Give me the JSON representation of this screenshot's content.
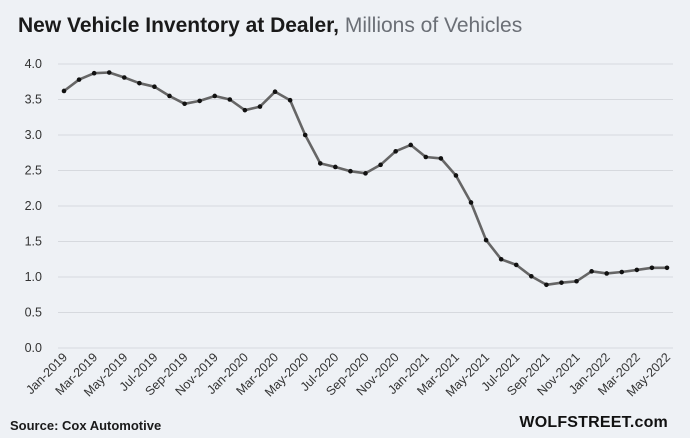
{
  "chart_data": {
    "type": "line",
    "title": "New Vehicle Inventory at Dealer,",
    "subtitle": "Millions of Vehicles",
    "xlabel": "",
    "ylabel": "",
    "ylim": [
      0,
      4.0
    ],
    "yticks": [
      "0.0",
      "0.5",
      "1.0",
      "1.5",
      "2.0",
      "2.5",
      "3.0",
      "3.5",
      "4.0"
    ],
    "grid": true,
    "x": [
      "Jan-2019",
      "Feb-2019",
      "Mar-2019",
      "Apr-2019",
      "May-2019",
      "Jun-2019",
      "Jul-2019",
      "Aug-2019",
      "Sep-2019",
      "Oct-2019",
      "Nov-2019",
      "Dec-2019",
      "Jan-2020",
      "Feb-2020",
      "Mar-2020",
      "Apr-2020",
      "May-2020",
      "Jun-2020",
      "Jul-2020",
      "Aug-2020",
      "Sep-2020",
      "Oct-2020",
      "Nov-2020",
      "Dec-2020",
      "Jan-2021",
      "Feb-2021",
      "Mar-2021",
      "Apr-2021",
      "May-2021",
      "Jun-2021",
      "Jul-2021",
      "Aug-2021",
      "Sep-2021",
      "Oct-2021",
      "Nov-2021",
      "Dec-2021",
      "Jan-2022",
      "Feb-2022",
      "Mar-2022",
      "Apr-2022",
      "May-2022"
    ],
    "xtick_labels": [
      "Jan-2019",
      "Mar-2019",
      "May-2019",
      "Jul-2019",
      "Sep-2019",
      "Nov-2019",
      "Jan-2020",
      "Mar-2020",
      "May-2020",
      "Jul-2020",
      "Sep-2020",
      "Nov-2020",
      "Jan-2021",
      "Mar-2021",
      "May-2021",
      "Jul-2021",
      "Sep-2021",
      "Nov-2021",
      "Jan-2022",
      "Mar-2022",
      "May-2022"
    ],
    "series": [
      {
        "name": "New Vehicle Inventory",
        "values": [
          3.62,
          3.78,
          3.87,
          3.88,
          3.81,
          3.73,
          3.68,
          3.55,
          3.44,
          3.48,
          3.55,
          3.5,
          3.35,
          3.4,
          3.61,
          3.49,
          3.0,
          2.6,
          2.55,
          2.49,
          2.46,
          2.58,
          2.77,
          2.86,
          2.69,
          2.67,
          2.43,
          2.05,
          1.52,
          1.25,
          1.17,
          1.01,
          0.89,
          0.92,
          0.94,
          1.08,
          1.05,
          1.07,
          1.1,
          1.13,
          1.13
        ]
      }
    ]
  },
  "colors": {
    "line": "#666666",
    "marker": "#111111",
    "grid": "#d6d9de",
    "background": "#eef1f5"
  },
  "footer": {
    "source": "Source: Cox Automotive",
    "brand": "WOLFSTREET.com"
  }
}
